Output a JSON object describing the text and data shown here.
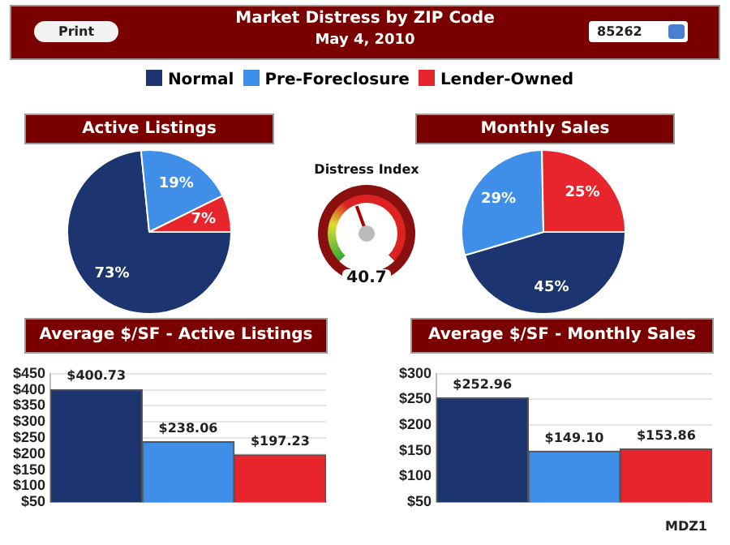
{
  "chart_data": [
    {
      "type": "other",
      "title": "Market Distress by ZIP Code",
      "subtitle": "May 4, 2010",
      "annotations": [
        "Print",
        "85262",
        "MDZ1"
      ]
    },
    {
      "type": "pie",
      "title": "Active Listings",
      "categories": [
        "Normal",
        "Pre-Foreclosure",
        "Lender-Owned"
      ],
      "values": [
        73.4,
        19.3,
        7.3
      ],
      "colors": [
        "#1c3570",
        "#3f8ee8",
        "#e8242c"
      ],
      "value_labels": [
        "73%",
        "19%",
        "7%"
      ],
      "legend": "top"
    },
    {
      "type": "other",
      "title": "Distress Index",
      "annotations": [
        "40.7"
      ]
    },
    {
      "type": "pie",
      "title": "Monthly Sales",
      "categories": [
        null,
        null,
        null
      ],
      "values": [
        45.4,
        29.3,
        25.3
      ],
      "colors": [
        "#1c3570",
        "#3f8ee8",
        "#e8242c"
      ],
      "value_labels": [
        "45%",
        "29%",
        "25%"
      ]
    },
    {
      "type": "bar",
      "title": "Average $/SF - Active Listings",
      "categories": [
        null,
        null,
        null
      ],
      "values": [
        400.73,
        238.06,
        197.23
      ],
      "colors": [
        "#1c3570",
        "#3f8ee8",
        "#e8242c"
      ],
      "value_labels": [
        "$400.73",
        "$238.06",
        "$197.23"
      ],
      "ylim": [
        50,
        450
      ],
      "yticks": [
        {
          "value": 50,
          "label": "$50"
        },
        {
          "value": 100,
          "label": "$100"
        },
        {
          "value": 150,
          "label": "$150"
        },
        {
          "value": 200,
          "label": "$200"
        },
        {
          "value": 250,
          "label": "$250"
        },
        {
          "value": 300,
          "label": "$300"
        },
        {
          "value": 350,
          "label": "$350"
        },
        {
          "value": 400,
          "label": "$400"
        },
        {
          "value": 450,
          "label": "$450"
        }
      ],
      "grid": "y"
    },
    {
      "type": "bar",
      "title": "Average $/SF - Monthly Sales",
      "categories": [
        null,
        null,
        null
      ],
      "values": [
        252.96,
        149.1,
        153.86
      ],
      "colors": [
        "#1c3570",
        "#3f8ee8",
        "#e8242c"
      ],
      "value_labels": [
        "$252.96",
        "$149.10",
        "$153.86"
      ],
      "ylim": [
        50,
        300
      ],
      "yticks": [
        {
          "value": 50,
          "label": "$50"
        },
        {
          "value": 100,
          "label": "$100"
        },
        {
          "value": 150,
          "label": "$150"
        },
        {
          "value": 200,
          "label": "$200"
        },
        {
          "value": 250,
          "label": "$250"
        },
        {
          "value": 300,
          "label": "$300"
        }
      ],
      "grid": "y"
    }
  ]
}
